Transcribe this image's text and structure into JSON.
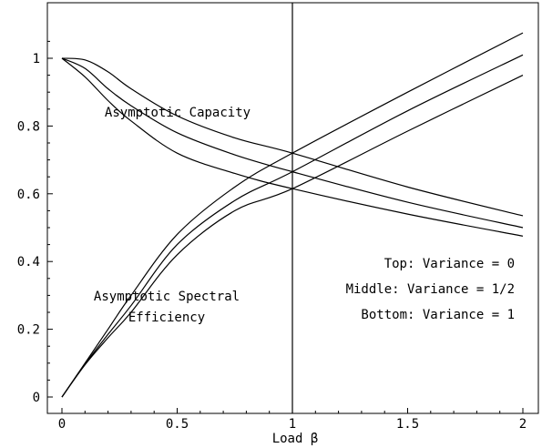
{
  "chart_data": {
    "type": "line",
    "title": "",
    "xlabel": "Load β",
    "ylabel": "",
    "xlim": [
      0,
      2
    ],
    "ylim": [
      0,
      1.1
    ],
    "grid": false,
    "xticks": [
      0,
      0.5,
      1,
      1.5,
      2
    ],
    "xtick_labels": [
      "0",
      "0.5",
      "1",
      "1.5",
      "2"
    ],
    "yticks": [
      0,
      0.2,
      0.4,
      0.6,
      0.8,
      1
    ],
    "ytick_labels": [
      "0",
      "0.2",
      "0.4",
      "0.6",
      "0.8",
      "1"
    ],
    "vline_x": 1,
    "annotations": {
      "capacity": "Asymptotic Capacity",
      "spectral_line1": "Asymptotic Spectral",
      "spectral_line2": "Efficiency"
    },
    "legend": {
      "placement": "lower-right inside plot",
      "lines": [
        "Top: Variance = 0",
        "Middle: Variance = 1/2",
        "Bottom: Variance = 1"
      ]
    },
    "series": [
      {
        "group": "capacity",
        "x": [
          0,
          0.1,
          0.2,
          0.3,
          0.5,
          0.75,
          1,
          1.5,
          2
        ],
        "y": [
          1,
          0.995,
          0.96,
          0.91,
          0.83,
          0.765,
          0.72,
          0.62,
          0.535
        ]
      },
      {
        "group": "capacity",
        "x": [
          0,
          0.1,
          0.2,
          0.3,
          0.5,
          0.75,
          1,
          1.5,
          2
        ],
        "y": [
          1,
          0.97,
          0.91,
          0.86,
          0.78,
          0.715,
          0.665,
          0.575,
          0.5
        ]
      },
      {
        "group": "capacity",
        "x": [
          0,
          0.1,
          0.2,
          0.3,
          0.5,
          0.75,
          1,
          1.5,
          2
        ],
        "y": [
          1,
          0.945,
          0.875,
          0.815,
          0.72,
          0.66,
          0.615,
          0.54,
          0.475
        ]
      },
      {
        "group": "spectral",
        "x": [
          0,
          0.1,
          0.2,
          0.3,
          0.5,
          0.75,
          1,
          1.5,
          2
        ],
        "y": [
          0,
          0.1,
          0.2,
          0.3,
          0.48,
          0.62,
          0.72,
          0.9,
          1.075
        ]
      },
      {
        "group": "spectral",
        "x": [
          0,
          0.1,
          0.2,
          0.3,
          0.5,
          0.75,
          1,
          1.5,
          2
        ],
        "y": [
          0,
          0.097,
          0.185,
          0.27,
          0.45,
          0.58,
          0.665,
          0.845,
          1.01
        ]
      },
      {
        "group": "spectral",
        "x": [
          0,
          0.1,
          0.2,
          0.3,
          0.5,
          0.75,
          1,
          1.5,
          2
        ],
        "y": [
          0,
          0.095,
          0.175,
          0.25,
          0.42,
          0.55,
          0.615,
          0.785,
          0.95
        ]
      }
    ]
  }
}
